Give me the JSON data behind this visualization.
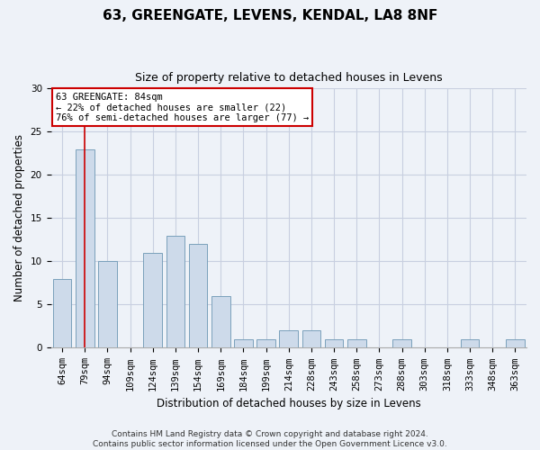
{
  "title1": "63, GREENGATE, LEVENS, KENDAL, LA8 8NF",
  "title2": "Size of property relative to detached houses in Levens",
  "xlabel": "Distribution of detached houses by size in Levens",
  "ylabel": "Number of detached properties",
  "categories": [
    "64sqm",
    "79sqm",
    "94sqm",
    "109sqm",
    "124sqm",
    "139sqm",
    "154sqm",
    "169sqm",
    "184sqm",
    "199sqm",
    "214sqm",
    "228sqm",
    "243sqm",
    "258sqm",
    "273sqm",
    "288sqm",
    "303sqm",
    "318sqm",
    "333sqm",
    "348sqm",
    "363sqm"
  ],
  "values": [
    8,
    23,
    10,
    0,
    11,
    13,
    12,
    6,
    1,
    1,
    2,
    2,
    1,
    1,
    0,
    1,
    0,
    0,
    1,
    0,
    1
  ],
  "bar_color": "#cddaea",
  "bar_edge_color": "#7aa0bb",
  "ylim": [
    0,
    30
  ],
  "yticks": [
    0,
    5,
    10,
    15,
    20,
    25,
    30
  ],
  "property_line_x": 1,
  "annotation_text_line1": "63 GREENGATE: 84sqm",
  "annotation_text_line2": "← 22% of detached houses are smaller (22)",
  "annotation_text_line3": "76% of semi-detached houses are larger (77) →",
  "annotation_box_color": "#ffffff",
  "annotation_box_edge_color": "#cc0000",
  "property_line_color": "#cc0000",
  "footer_text": "Contains HM Land Registry data © Crown copyright and database right 2024.\nContains public sector information licensed under the Open Government Licence v3.0.",
  "grid_color": "#c8cfe0",
  "background_color": "#eef2f8",
  "title1_fontsize": 11,
  "title2_fontsize": 9,
  "ylabel_fontsize": 8.5,
  "xlabel_fontsize": 8.5,
  "annotation_fontsize": 7.5,
  "tick_fontsize": 7.5,
  "footer_fontsize": 6.5
}
